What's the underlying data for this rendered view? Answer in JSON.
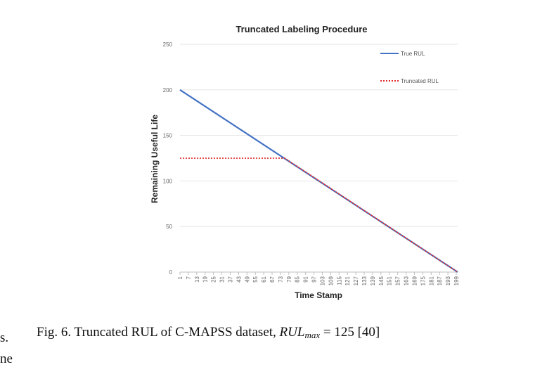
{
  "chart_data": {
    "type": "line",
    "title": "Truncated Labeling Procedure",
    "xlabel": "Time Stamp",
    "ylabel": "Remaining Useful Life",
    "xlim": [
      1,
      200
    ],
    "ylim": [
      0,
      250
    ],
    "yticks": [
      0,
      50,
      100,
      150,
      200,
      250
    ],
    "xticks": [
      1,
      7,
      13,
      19,
      25,
      31,
      37,
      43,
      49,
      55,
      61,
      67,
      73,
      79,
      85,
      91,
      97,
      103,
      109,
      115,
      121,
      127,
      133,
      139,
      145,
      151,
      157,
      163,
      169,
      175,
      181,
      187,
      193,
      199
    ],
    "grid": "horizontal",
    "legend_position": "top-right",
    "series": [
      {
        "name": "True RUL",
        "color": "#4472c4",
        "style": "solid",
        "x": [
          1,
          200
        ],
        "y": [
          200,
          0
        ]
      },
      {
        "name": "Truncated RUL",
        "color": "#e03030",
        "style": "dotted",
        "x": [
          1,
          76,
          200
        ],
        "y": [
          125,
          125,
          0
        ]
      }
    ]
  },
  "caption": {
    "prefix": "Fig. 6.  Truncated RUL of C-MAPSS dataset, ",
    "math_var": "RUL",
    "math_sub": "max",
    "math_rest": " = 125 [40]"
  },
  "fragments": {
    "left_top": "s.",
    "left_bottom": "ne"
  }
}
